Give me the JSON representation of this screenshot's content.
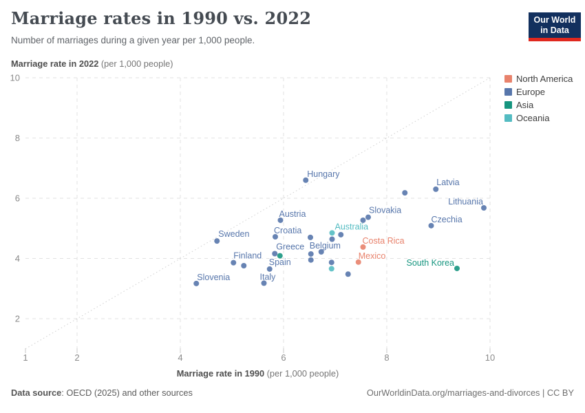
{
  "header": {
    "title": "Marriage rates in 1990 vs. 2022",
    "subtitle": "Number of marriages during a given year per 1,000 people.",
    "logo_line1": "Our World",
    "logo_line2": "in Data",
    "logo_bg": "#12305E",
    "logo_accent": "#E0281E"
  },
  "legend": {
    "items": [
      {
        "label": "North America",
        "color": "#E8826C"
      },
      {
        "label": "Europe",
        "color": "#5776AB"
      },
      {
        "label": "Asia",
        "color": "#16957F"
      },
      {
        "label": "Oceania",
        "color": "#54BCC2"
      }
    ]
  },
  "axes": {
    "y_title_bold": "Marriage rate in 2022",
    "y_title_unit": " (per 1,000 people)",
    "x_title_bold": "Marriage rate in 1990",
    "x_title_unit": " (per 1,000 people)"
  },
  "chart_data": {
    "type": "scatter",
    "title": "Marriage rates in 1990 vs. 2022",
    "xlabel": "Marriage rate in 1990 (per 1,000 people)",
    "ylabel": "Marriage rate in 2022 (per 1,000 people)",
    "xlim": [
      1,
      10
    ],
    "ylim": [
      1,
      10
    ],
    "xticks": [
      1,
      2,
      4,
      6,
      8,
      10
    ],
    "yticks": [
      2,
      4,
      6,
      8,
      10
    ],
    "grid": "dashed",
    "diagonal_line": "y = x (dotted)",
    "legend_position": "top-right",
    "series": [
      {
        "name": "North America",
        "color": "#E8826C",
        "points": [
          {
            "country": "Costa Rica",
            "x": 7.54,
            "y": 4.38,
            "anchor": "start",
            "dx": -1,
            "dy": -5
          },
          {
            "country": "Mexico",
            "x": 7.45,
            "y": 3.88,
            "anchor": "start",
            "dx": 0,
            "dy": -5
          }
        ]
      },
      {
        "name": "Europe",
        "color": "#5776AB",
        "points": [
          {
            "country": "Hungary",
            "x": 6.43,
            "y": 6.6,
            "anchor": "start",
            "dx": 2,
            "dy": -5
          },
          {
            "country": "Latvia",
            "x": 8.95,
            "y": 6.3,
            "anchor": "start",
            "dx": 1,
            "dy": -6
          },
          {
            "country": null,
            "x": 8.35,
            "y": 6.18
          },
          {
            "country": "Lithuania",
            "x": 9.88,
            "y": 5.68,
            "anchor": "end",
            "dx": -1,
            "dy": -5
          },
          {
            "country": "Slovakia",
            "x": 7.64,
            "y": 5.37,
            "anchor": "start",
            "dx": 1,
            "dy": -6
          },
          {
            "country": null,
            "x": 7.54,
            "y": 5.27
          },
          {
            "country": "Austria",
            "x": 5.94,
            "y": 5.27,
            "anchor": "start",
            "dx": -2,
            "dy": -5
          },
          {
            "country": "Czechia",
            "x": 8.86,
            "y": 5.09,
            "anchor": "start",
            "dx": 0,
            "dy": -5
          },
          {
            "country": null,
            "x": 7.11,
            "y": 4.79
          },
          {
            "country": "Croatia",
            "x": 5.84,
            "y": 4.72,
            "anchor": "start",
            "dx": -2,
            "dy": -5
          },
          {
            "country": null,
            "x": 6.52,
            "y": 4.7
          },
          {
            "country": null,
            "x": 6.94,
            "y": 4.64
          },
          {
            "country": "Sweden",
            "x": 4.71,
            "y": 4.58,
            "anchor": "start",
            "dx": 2,
            "dy": -6
          },
          {
            "country": "Belgium",
            "x": 6.73,
            "y": 4.22,
            "anchor": "start",
            "dx": -17,
            "dy": -5
          },
          {
            "country": "Greece",
            "x": 5.83,
            "y": 4.16,
            "anchor": "start",
            "dx": 2,
            "dy": -6
          },
          {
            "country": null,
            "x": 6.53,
            "y": 4.15
          },
          {
            "country": null,
            "x": 6.53,
            "y": 3.95
          },
          {
            "country": null,
            "x": 6.93,
            "y": 3.87
          },
          {
            "country": "Finland",
            "x": 5.03,
            "y": 3.86,
            "anchor": "start",
            "dx": 0,
            "dy": -6
          },
          {
            "country": null,
            "x": 5.23,
            "y": 3.76
          },
          {
            "country": "Spain",
            "x": 5.73,
            "y": 3.65,
            "anchor": "start",
            "dx": -1,
            "dy": -6
          },
          {
            "country": null,
            "x": 7.25,
            "y": 3.48
          },
          {
            "country": "Italy",
            "x": 5.62,
            "y": 3.18,
            "anchor": "start",
            "dx": -6,
            "dy": -5
          },
          {
            "country": "Slovenia",
            "x": 4.31,
            "y": 3.17,
            "anchor": "start",
            "dx": 1,
            "dy": -5
          }
        ]
      },
      {
        "name": "Asia",
        "color": "#16957F",
        "points": [
          {
            "country": "South Korea",
            "x": 9.36,
            "y": 3.67,
            "anchor": "end",
            "dx": -4,
            "dy": -4
          },
          {
            "country": null,
            "x": 5.93,
            "y": 4.09
          }
        ]
      },
      {
        "name": "Oceania",
        "color": "#54BCC2",
        "points": [
          {
            "country": "Australia",
            "x": 6.94,
            "y": 4.85,
            "anchor": "start",
            "dx": 4,
            "dy": -5
          },
          {
            "country": null,
            "x": 6.93,
            "y": 3.66
          }
        ]
      }
    ]
  },
  "footer": {
    "source_bold": "Data source",
    "source_rest": ": OECD (2025) and other sources",
    "link": "OurWorldinData.org/marriages-and-divorces | CC BY"
  }
}
